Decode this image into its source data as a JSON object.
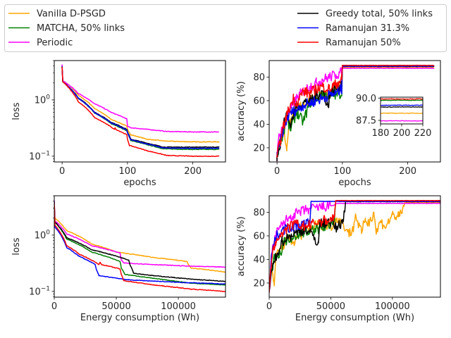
{
  "legend": {
    "placement": "top",
    "entries": [
      {
        "name": "Vanilla D-PSGD",
        "color": "#ffa500"
      },
      {
        "name": "MATCHA, 50% links",
        "color": "#008000"
      },
      {
        "name": "Periodic",
        "color": "#ff00ff"
      },
      {
        "name": "Greedy total, 50% links",
        "color": "#000000"
      },
      {
        "name": "Ramanujan 31.3%",
        "color": "#0000ff"
      },
      {
        "name": "Ramanujan 50%",
        "color": "#ff0000"
      }
    ]
  },
  "chart_data": [
    {
      "id": "loss-epochs",
      "type": "line",
      "xlabel": "epochs",
      "ylabel": "loss",
      "yscale": "log",
      "xlim": [
        -12,
        250
      ],
      "ylim": [
        0.079,
        5.0
      ],
      "xticks": [
        0,
        100,
        200
      ],
      "xtick_labels": [
        "0",
        "100",
        "200"
      ],
      "yticks": [
        1,
        0.1
      ],
      "ytick_labels": [
        "10^0",
        "10^-1"
      ],
      "series": [
        {
          "name": "Vanilla D-PSGD",
          "color": "#ffa500",
          "x": [
            0,
            1,
            10,
            25,
            50,
            75,
            99,
            100,
            105,
            130,
            160,
            200,
            240
          ],
          "y": [
            4.0,
            2.2,
            1.85,
            1.2,
            0.7,
            0.45,
            0.34,
            0.3,
            0.24,
            0.2,
            0.185,
            0.18,
            0.18
          ]
        },
        {
          "name": "MATCHA, 50% links",
          "color": "#008000",
          "x": [
            0,
            1,
            10,
            25,
            50,
            75,
            99,
            100,
            105,
            130,
            155,
            200,
            240
          ],
          "y": [
            3.8,
            2.1,
            1.7,
            1.05,
            0.58,
            0.38,
            0.28,
            0.26,
            0.19,
            0.16,
            0.135,
            0.132,
            0.132
          ]
        },
        {
          "name": "Periodic",
          "color": "#ff00ff",
          "x": [
            0,
            1,
            10,
            25,
            50,
            75,
            99,
            100,
            105,
            130,
            160,
            200,
            240
          ],
          "y": [
            4.2,
            2.2,
            1.85,
            1.3,
            0.85,
            0.6,
            0.46,
            0.34,
            0.32,
            0.3,
            0.275,
            0.27,
            0.27
          ]
        },
        {
          "name": "Greedy total, 50% links",
          "color": "#000000",
          "x": [
            0,
            1,
            10,
            25,
            50,
            75,
            99,
            100,
            105,
            130,
            155,
            200,
            240
          ],
          "y": [
            3.9,
            2.1,
            1.7,
            1.08,
            0.6,
            0.4,
            0.3,
            0.27,
            0.2,
            0.17,
            0.145,
            0.145,
            0.145
          ]
        },
        {
          "name": "Ramanujan 31.3%",
          "color": "#0000ff",
          "x": [
            0,
            1,
            10,
            25,
            50,
            75,
            99,
            100,
            105,
            130,
            155,
            200,
            240
          ],
          "y": [
            3.9,
            2.1,
            1.7,
            1.06,
            0.59,
            0.39,
            0.29,
            0.26,
            0.195,
            0.165,
            0.14,
            0.138,
            0.138
          ]
        },
        {
          "name": "Ramanujan 50%",
          "color": "#ff0000",
          "x": [
            0,
            1,
            10,
            25,
            50,
            80,
            81,
            82,
            99,
            100,
            103,
            130,
            160,
            200,
            240
          ],
          "y": [
            3.8,
            2.1,
            1.65,
            0.92,
            0.48,
            0.3,
            0.32,
            0.3,
            0.24,
            0.2,
            0.155,
            0.125,
            0.103,
            0.1,
            0.1
          ]
        }
      ]
    },
    {
      "id": "accuracy-epochs",
      "type": "line",
      "xlabel": "epochs",
      "ylabel": "accuracy (%)",
      "xlim": [
        -12,
        250
      ],
      "ylim": [
        8,
        94
      ],
      "xticks": [
        0,
        100,
        200
      ],
      "xtick_labels": [
        "0",
        "100",
        "200"
      ],
      "yticks": [
        20,
        40,
        60,
        80
      ],
      "ytick_labels": [
        "20",
        "40",
        "60",
        "80"
      ],
      "series": [
        {
          "name": "Vanilla D-PSGD",
          "color": "#ffa500",
          "x": [
            0,
            5,
            10,
            15,
            20,
            30,
            40,
            50,
            60,
            70,
            80,
            90,
            99,
            100,
            240
          ],
          "y": [
            12,
            28,
            35,
            20,
            45,
            52,
            58,
            60,
            62,
            66,
            65,
            70,
            72,
            88.3,
            88.3
          ]
        },
        {
          "name": "MATCHA, 50% links",
          "color": "#008000",
          "x": [
            0,
            5,
            10,
            15,
            20,
            30,
            40,
            50,
            60,
            70,
            80,
            90,
            99,
            100,
            240
          ],
          "y": [
            13,
            26,
            33,
            45,
            35,
            50,
            42,
            58,
            62,
            66,
            64,
            65,
            66,
            89.8,
            89.8
          ]
        },
        {
          "name": "Periodic",
          "color": "#ff00ff",
          "x": [
            0,
            3,
            10,
            20,
            30,
            40,
            50,
            60,
            70,
            80,
            90,
            99,
            100,
            240
          ],
          "y": [
            12,
            30,
            40,
            52,
            62,
            68,
            72,
            75,
            78,
            80,
            82,
            84,
            87.5,
            87.5
          ]
        },
        {
          "name": "Greedy total, 50% links",
          "color": "#000000",
          "x": [
            0,
            5,
            10,
            15,
            20,
            30,
            40,
            50,
            60,
            70,
            79,
            80,
            90,
            99,
            100,
            240
          ],
          "y": [
            13,
            22,
            40,
            48,
            40,
            55,
            58,
            60,
            64,
            68,
            54,
            66,
            70,
            74,
            89.0,
            89.0
          ]
        },
        {
          "name": "Ramanujan 31.3%",
          "color": "#0000ff",
          "x": [
            0,
            5,
            10,
            15,
            20,
            30,
            40,
            50,
            60,
            70,
            80,
            90,
            99,
            100,
            240
          ],
          "y": [
            13,
            25,
            36,
            44,
            50,
            52,
            56,
            58,
            60,
            62,
            65,
            66,
            70,
            89.2,
            89.2
          ]
        },
        {
          "name": "Ramanujan 50%",
          "color": "#ff0000",
          "x": [
            0,
            5,
            10,
            15,
            20,
            25,
            30,
            40,
            50,
            60,
            70,
            80,
            90,
            99,
            100,
            240
          ],
          "y": [
            12,
            26,
            38,
            48,
            55,
            62,
            58,
            68,
            66,
            70,
            72,
            70,
            74,
            78,
            89.9,
            89.9
          ]
        }
      ],
      "inset": {
        "xlim": [
          180,
          220
        ],
        "ylim": [
          87.1,
          90.1
        ],
        "xticks": [
          180,
          200,
          220
        ],
        "xtick_labels": [
          "180",
          "200",
          "220"
        ],
        "yticks": [
          90.0,
          87.5
        ],
        "ytick_labels": [
          "90.0",
          "87.5"
        ],
        "series": [
          {
            "name": "Vanilla D-PSGD",
            "color": "#ffa500",
            "x": [
              180,
              220
            ],
            "y": [
              88.3,
              88.3
            ]
          },
          {
            "name": "MATCHA, 50% links",
            "color": "#008000",
            "x": [
              180,
              220
            ],
            "y": [
              89.75,
              89.75
            ]
          },
          {
            "name": "Periodic",
            "color": "#ff00ff",
            "x": [
              180,
              220
            ],
            "y": [
              87.45,
              87.45
            ]
          },
          {
            "name": "Greedy total, 50% links",
            "color": "#000000",
            "x": [
              180,
              220
            ],
            "y": [
              89.0,
              89.0
            ]
          },
          {
            "name": "Ramanujan 31.3%",
            "color": "#0000ff",
            "x": [
              180,
              220
            ],
            "y": [
              89.2,
              89.2
            ]
          },
          {
            "name": "Ramanujan 50%",
            "color": "#ff0000",
            "x": [
              180,
              220
            ],
            "y": [
              89.9,
              89.9
            ]
          }
        ]
      }
    },
    {
      "id": "loss-energy",
      "type": "line",
      "xlabel": "Energy consumption (Wh)",
      "ylabel": "loss",
      "yscale": "log",
      "xlim": [
        0,
        138000
      ],
      "ylim": [
        0.079,
        5.0
      ],
      "xticks": [
        0,
        50000,
        100000
      ],
      "xtick_labels": [
        "0",
        "50000",
        "100000"
      ],
      "yticks": [
        1,
        0.1
      ],
      "ytick_labels": [
        "10^0",
        "10^-1"
      ],
      "series": [
        {
          "name": "Vanilla D-PSGD",
          "color": "#ffa500",
          "x": [
            0,
            500,
            10000,
            30000,
            50000,
            80000,
            107000,
            108000,
            110000,
            125000,
            138000
          ],
          "y": [
            4.0,
            2.0,
            1.2,
            0.7,
            0.5,
            0.4,
            0.34,
            0.3,
            0.26,
            0.24,
            0.22
          ]
        },
        {
          "name": "MATCHA, 50% links",
          "color": "#008000",
          "x": [
            0,
            500,
            10000,
            30000,
            53000,
            54000,
            57000,
            80000,
            110000,
            138000
          ],
          "y": [
            3.8,
            1.7,
            0.85,
            0.5,
            0.34,
            0.26,
            0.2,
            0.17,
            0.14,
            0.13
          ]
        },
        {
          "name": "Periodic",
          "color": "#ff00ff",
          "x": [
            0,
            500,
            10000,
            30000,
            53000,
            54000,
            56000,
            80000,
            110000,
            138000
          ],
          "y": [
            4.2,
            1.8,
            1.05,
            0.65,
            0.48,
            0.36,
            0.32,
            0.3,
            0.28,
            0.27
          ]
        },
        {
          "name": "Greedy total, 50% links",
          "color": "#000000",
          "x": [
            0,
            500,
            10000,
            30000,
            60000,
            61000,
            64000,
            80000,
            110000,
            138000
          ],
          "y": [
            3.9,
            1.7,
            0.9,
            0.55,
            0.36,
            0.3,
            0.21,
            0.19,
            0.165,
            0.15
          ]
        },
        {
          "name": "Ramanujan 31.3%",
          "color": "#0000ff",
          "x": [
            0,
            500,
            10000,
            20000,
            33000,
            34000,
            36000,
            60000,
            100000,
            138000
          ],
          "y": [
            3.9,
            1.4,
            0.6,
            0.42,
            0.3,
            0.24,
            0.19,
            0.16,
            0.145,
            0.135
          ]
        },
        {
          "name": "Ramanujan 50%",
          "color": "#ff0000",
          "x": [
            0,
            500,
            10000,
            20000,
            36000,
            37000,
            38000,
            53000,
            54000,
            56000,
            80000,
            110000,
            138000
          ],
          "y": [
            3.8,
            1.5,
            0.65,
            0.46,
            0.3,
            0.33,
            0.3,
            0.25,
            0.2,
            0.155,
            0.13,
            0.11,
            0.1
          ]
        }
      ]
    },
    {
      "id": "accuracy-energy",
      "type": "line",
      "xlabel": "Energy consumption (Wh)",
      "ylabel": "accuracy (%)",
      "xlim": [
        0,
        139000
      ],
      "ylim": [
        8,
        94
      ],
      "xticks": [
        0,
        50000,
        100000
      ],
      "xtick_labels": [
        "0",
        "50000",
        "100000"
      ],
      "yticks": [
        20,
        40,
        60,
        80
      ],
      "ytick_labels": [
        "20",
        "40",
        "60",
        "80"
      ],
      "series": [
        {
          "name": "Vanilla D-PSGD",
          "color": "#ffa500",
          "x": [
            0,
            2000,
            4000,
            6000,
            10000,
            15000,
            20000,
            30000,
            40000,
            50000,
            55000,
            60000,
            65000,
            68000,
            70000,
            75000,
            78000,
            80000,
            85000,
            87000,
            90000,
            95000,
            100000,
            105000,
            108000,
            110000,
            139000
          ],
          "y": [
            12,
            35,
            20,
            45,
            50,
            58,
            55,
            65,
            70,
            68,
            75,
            70,
            62,
            65,
            78,
            62,
            75,
            70,
            80,
            62,
            72,
            68,
            78,
            76,
            80,
            88.3,
            88.3
          ]
        },
        {
          "name": "MATCHA, 50% links",
          "color": "#008000",
          "x": [
            0,
            2000,
            5000,
            8000,
            12000,
            20000,
            30000,
            40000,
            50000,
            53000,
            54000,
            139000
          ],
          "y": [
            13,
            30,
            45,
            42,
            55,
            60,
            64,
            66,
            70,
            72,
            89.8,
            89.8
          ]
        },
        {
          "name": "Periodic",
          "color": "#ff00ff",
          "x": [
            0,
            2000,
            6000,
            12000,
            20000,
            30000,
            40000,
            53000,
            54000,
            56000,
            139000
          ],
          "y": [
            12,
            45,
            62,
            72,
            78,
            82,
            84,
            86,
            87.5,
            87.5,
            87.5
          ]
        },
        {
          "name": "Greedy total, 50% links",
          "color": "#000000",
          "x": [
            0,
            2000,
            5000,
            10000,
            20000,
            30000,
            40000,
            41000,
            50000,
            55000,
            60000,
            61000,
            62000,
            139000
          ],
          "y": [
            13,
            30,
            40,
            55,
            62,
            66,
            54,
            70,
            72,
            66,
            74,
            80,
            89.0,
            89.0
          ]
        },
        {
          "name": "Ramanujan 31.3%",
          "color": "#0000ff",
          "x": [
            0,
            2000,
            5000,
            10000,
            20000,
            30000,
            33000,
            34000,
            139000
          ],
          "y": [
            13,
            45,
            58,
            65,
            68,
            70,
            72,
            89.2,
            89.2
          ]
        },
        {
          "name": "Ramanujan 50%",
          "color": "#ff0000",
          "x": [
            0,
            2000,
            5000,
            10000,
            15000,
            20000,
            30000,
            40000,
            50000,
            53000,
            54000,
            139000
          ],
          "y": [
            12,
            40,
            55,
            62,
            66,
            70,
            68,
            72,
            74,
            76,
            89.9,
            89.9
          ]
        }
      ]
    }
  ]
}
